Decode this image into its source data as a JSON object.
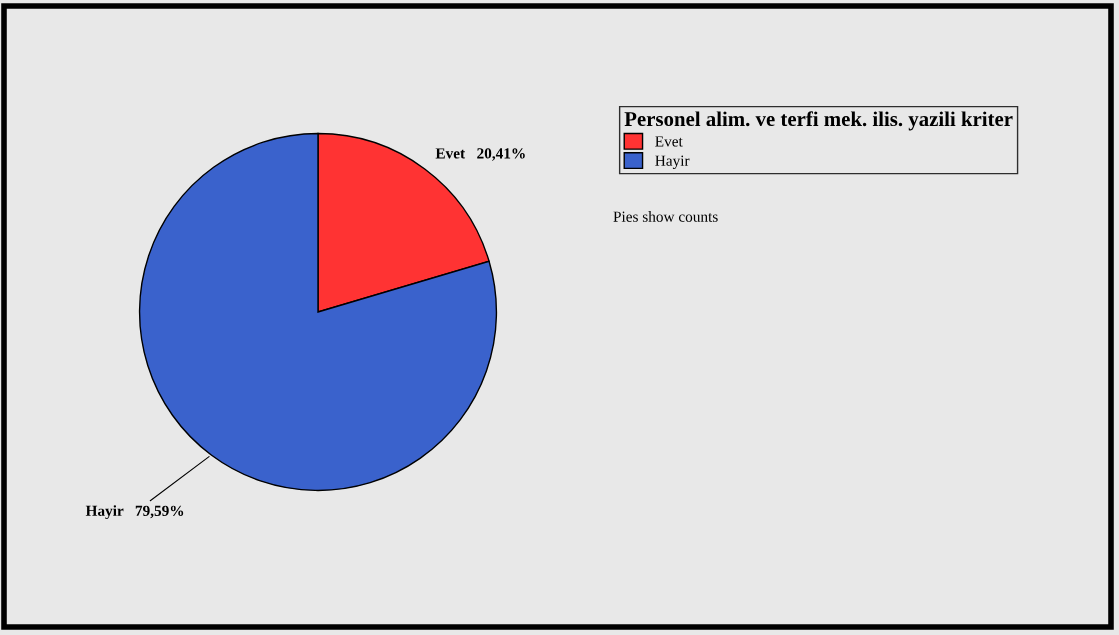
{
  "chart_data": {
    "type": "pie",
    "categories": [
      "Evet",
      "Hayir"
    ],
    "values": [
      20.41,
      79.59
    ],
    "colors": [
      "#ff3333",
      "#3a62cc"
    ],
    "value_labels": [
      "20,41%",
      "79,59%"
    ],
    "legend": "top right",
    "legend_title": "Personel alim. ve terfi mek. ilis. yazili kriter",
    "annotations": [
      "Pies show counts"
    ]
  }
}
